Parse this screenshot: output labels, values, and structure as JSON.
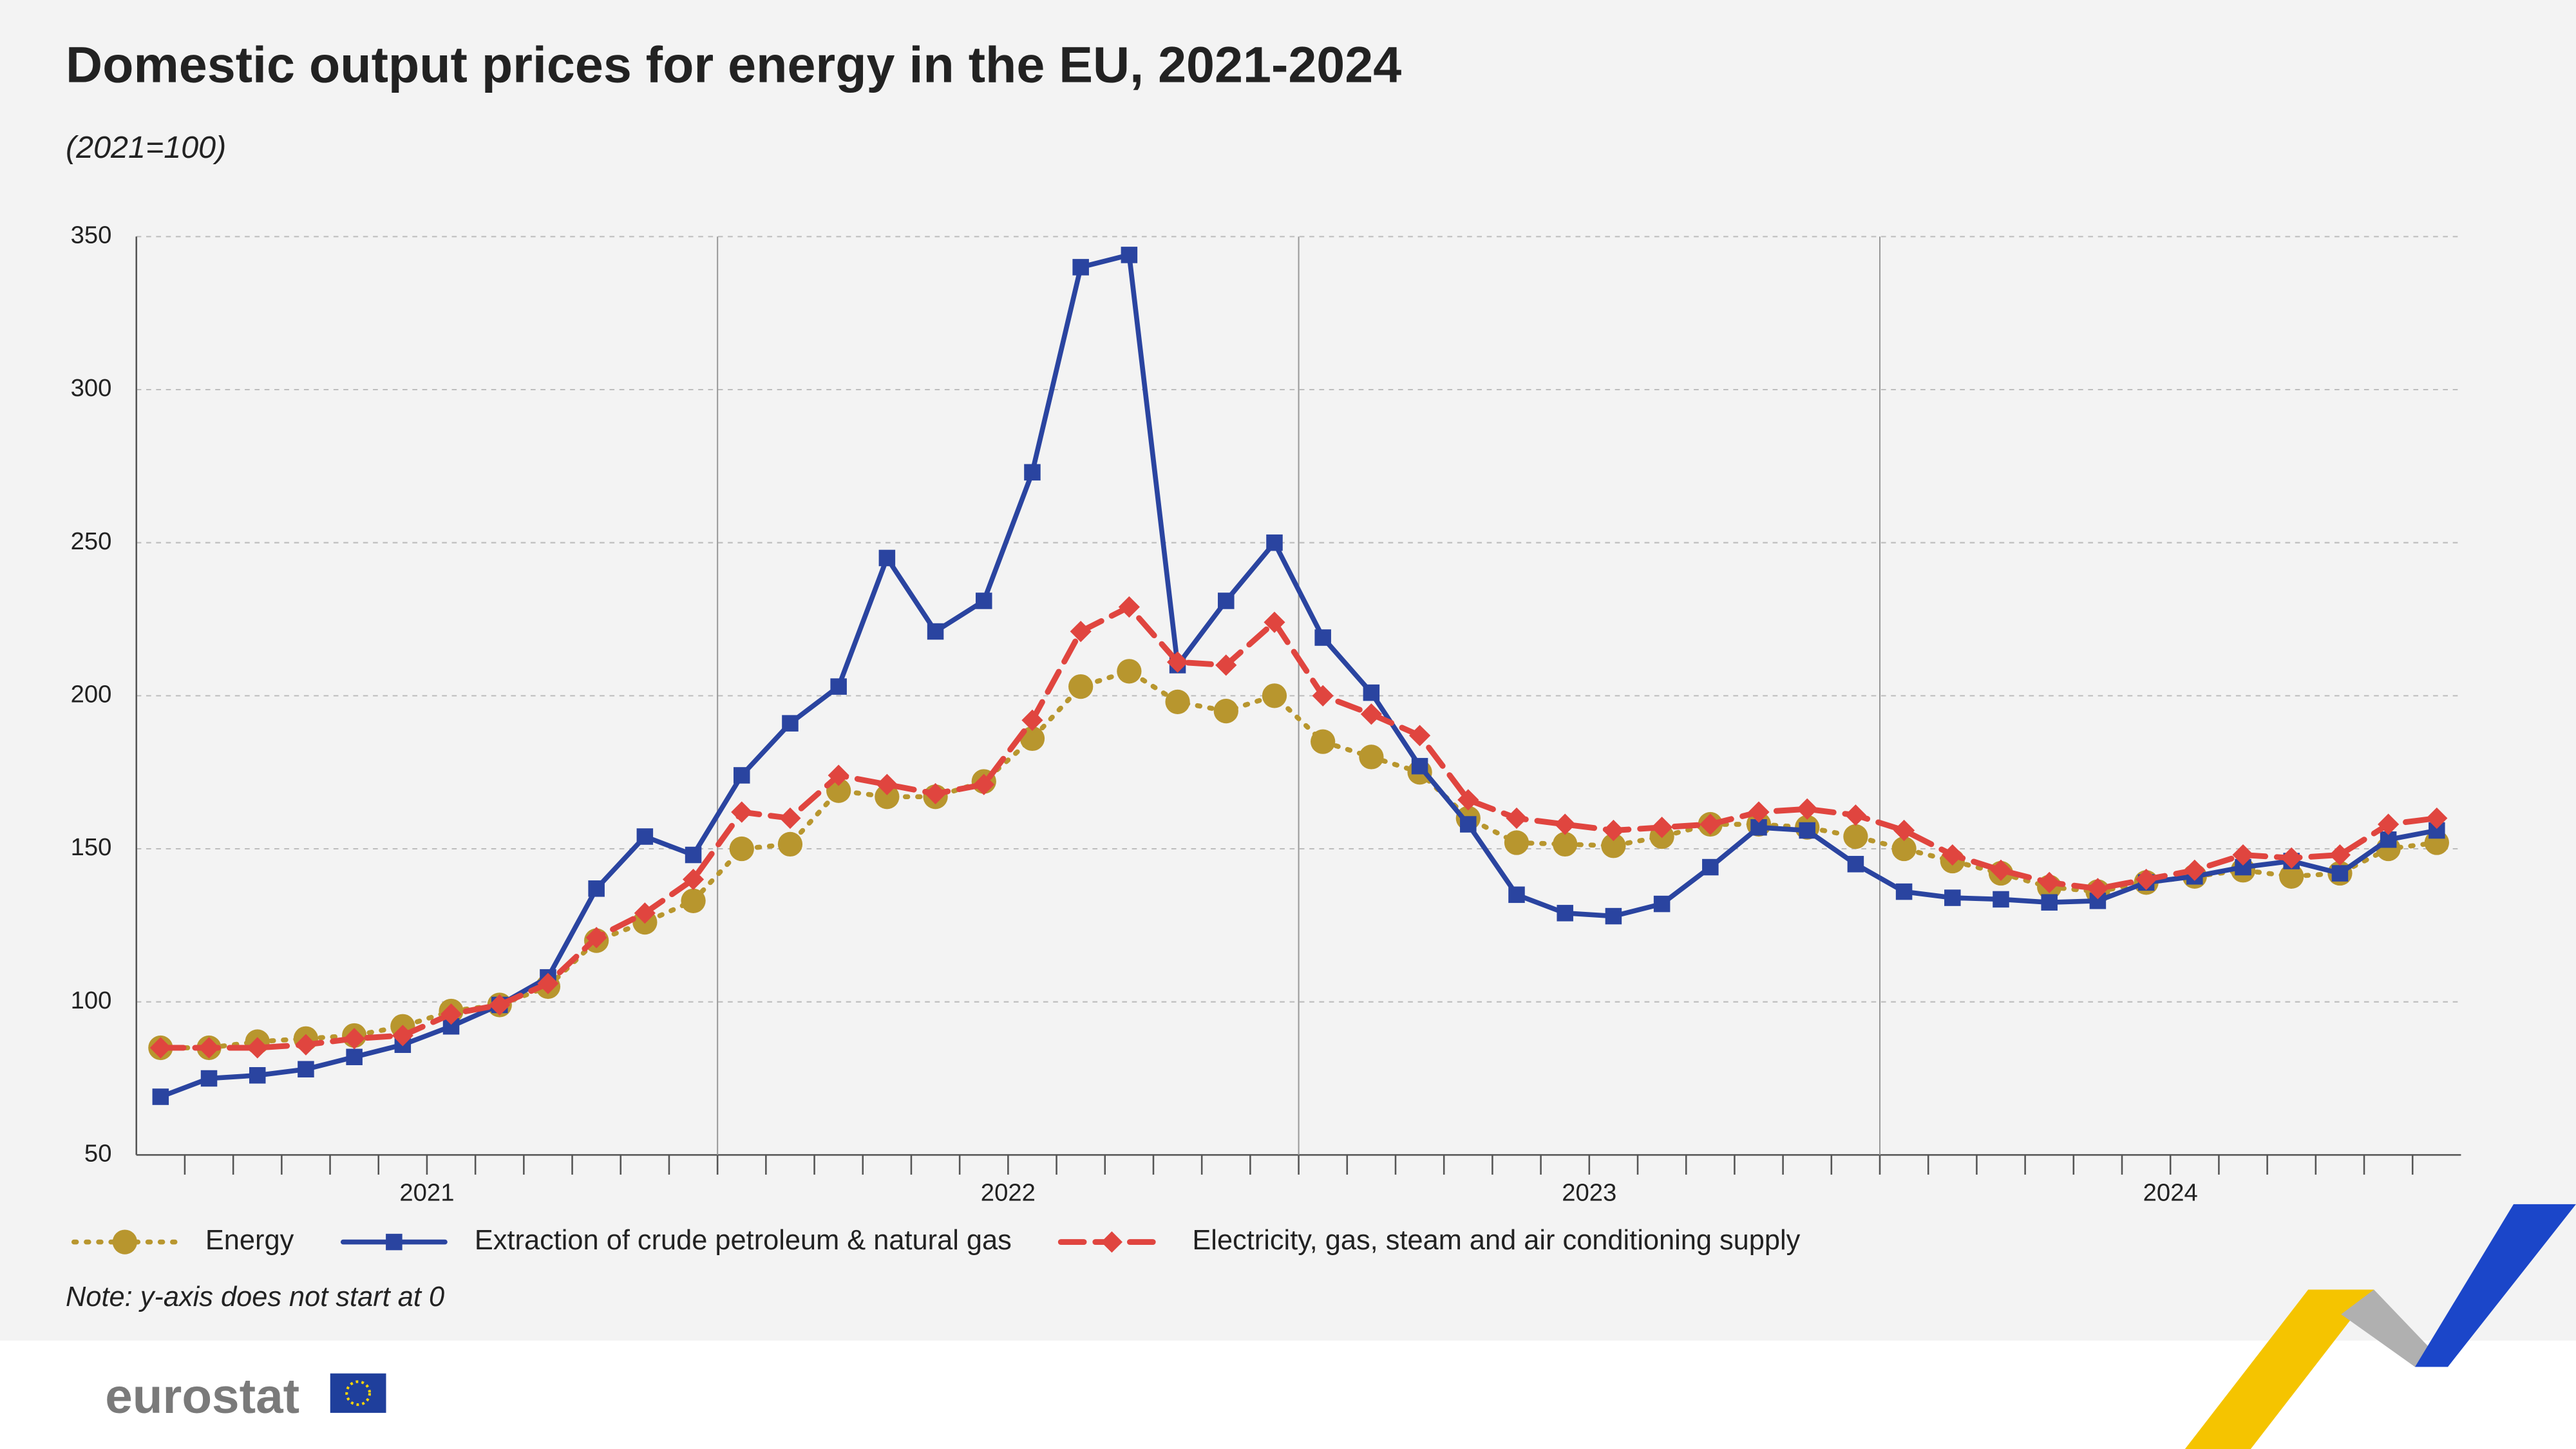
{
  "chart_data": {
    "type": "line",
    "title": "Domestic output prices for energy in the EU, 2021-2024",
    "subtitle": "(2021=100)",
    "note": "Note: y-axis does not start at 0",
    "logo": "eurostat",
    "categories": [
      null,
      null,
      null,
      null,
      null,
      null,
      null,
      null,
      null,
      null,
      null,
      null,
      null,
      null,
      null,
      null,
      null,
      null,
      null,
      null,
      null,
      null,
      null,
      null,
      null,
      null,
      null,
      null,
      null,
      null,
      null,
      null,
      null,
      null,
      null,
      null,
      null,
      null,
      null,
      null,
      null,
      null,
      null,
      null,
      null,
      null,
      null,
      null
    ],
    "x_groups": [
      "2021",
      "2022",
      "2023",
      "2024"
    ],
    "ylim": [
      50,
      350
    ],
    "yticks": [
      50,
      100,
      150,
      200,
      250,
      300,
      350
    ],
    "grid": true,
    "series": [
      {
        "name": "Energy",
        "color": "#b8962e",
        "line_style": "dotted",
        "marker": "circle",
        "values": [
          85,
          85,
          87,
          88,
          89,
          92,
          97,
          99,
          105,
          120,
          126,
          133,
          150,
          151.5,
          169,
          167,
          167,
          172,
          186,
          203,
          208,
          198,
          195,
          200,
          185,
          180,
          175,
          160,
          152,
          151.5,
          151,
          154,
          158,
          158,
          157,
          154,
          150,
          146,
          142,
          137.5,
          136,
          139,
          141,
          143,
          141,
          142,
          150,
          152
        ]
      },
      {
        "name": "Extraction of crude petroleum & natural gas",
        "color": "#2a44a0",
        "line_style": "solid",
        "marker": "square",
        "values": [
          69,
          75,
          76,
          78,
          82,
          86,
          92,
          99,
          108,
          137,
          154,
          148,
          174,
          191,
          203,
          245,
          221,
          231,
          273,
          340,
          344,
          210,
          231,
          250,
          219,
          201,
          177,
          158,
          135,
          129,
          128,
          132,
          144,
          157,
          156,
          145,
          136,
          134,
          133.5,
          132.5,
          133,
          139,
          141,
          144,
          146,
          142,
          153,
          156
        ]
      },
      {
        "name": "Electricity, gas, steam and air conditioning supply",
        "color": "#e0453f",
        "line_style": "dashed",
        "marker": "diamond",
        "values": [
          85,
          85,
          85,
          86,
          88,
          89,
          96,
          99,
          106,
          121,
          129,
          140,
          162,
          160,
          174,
          171,
          168,
          171,
          192,
          221,
          229,
          211,
          210,
          224,
          200,
          194,
          187,
          166,
          160,
          158,
          156,
          157,
          158,
          162,
          163,
          161,
          156,
          148,
          143,
          139,
          137,
          140,
          143,
          148,
          147,
          148,
          158,
          160
        ]
      }
    ]
  }
}
